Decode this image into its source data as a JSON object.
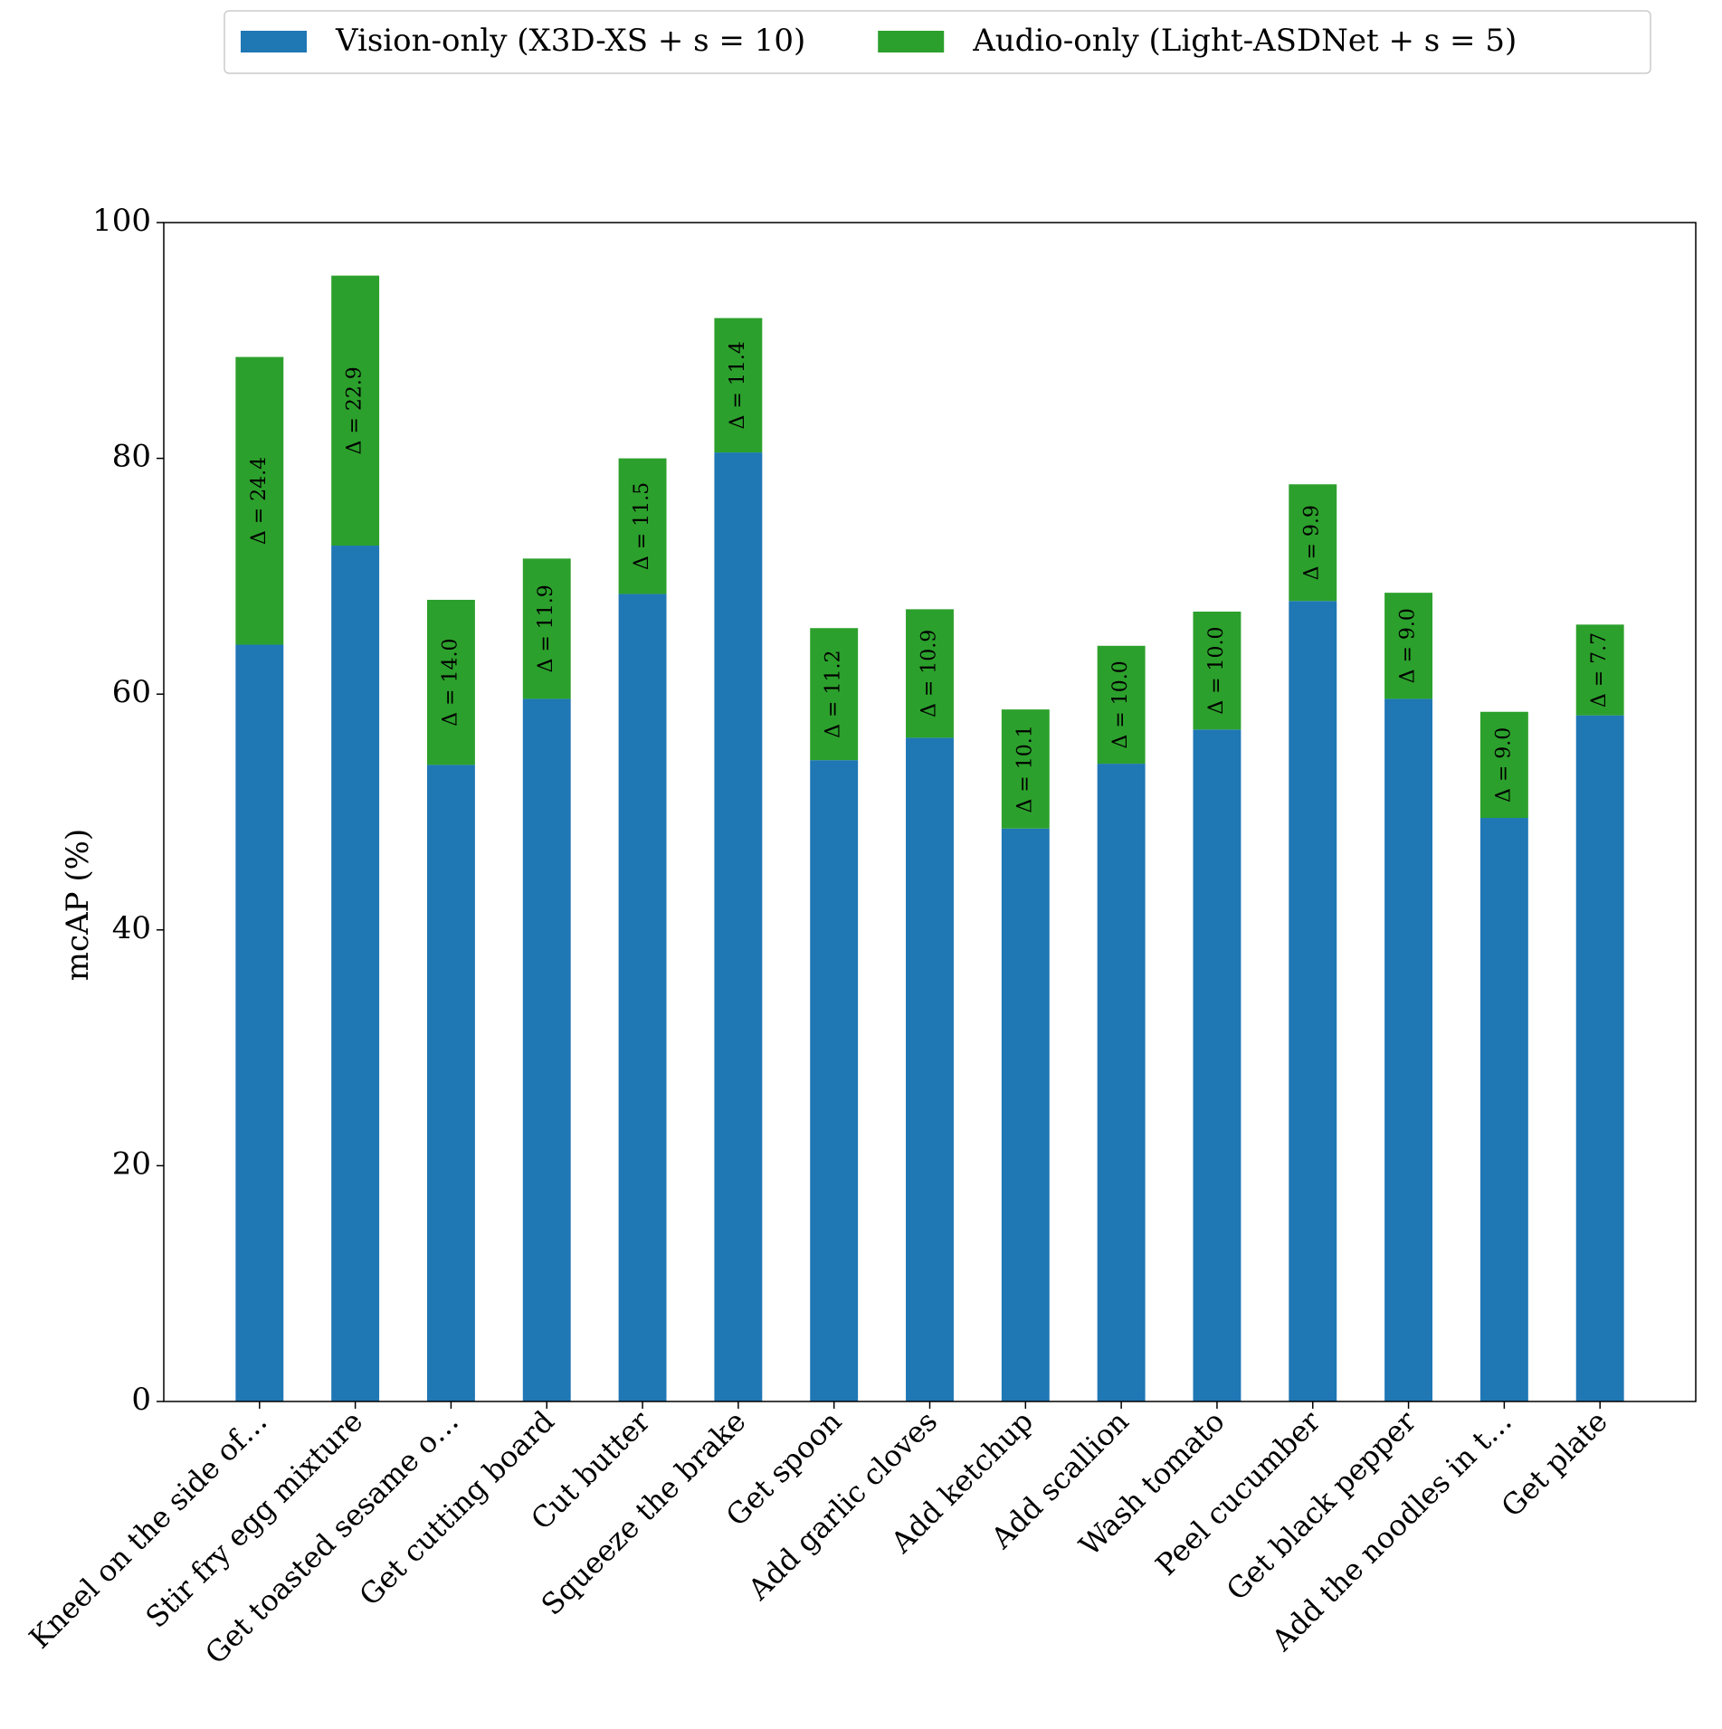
{
  "chart_data": {
    "type": "stacked_bar",
    "categories": [
      "Kneel on the side of…",
      "Stir fry egg mixture",
      "Get toasted sesame o…",
      "Get cutting board",
      "Cut butter",
      "Squeeze the brake",
      "Get spoon",
      "Add garlic cloves",
      "Add ketchup",
      "Add scallion",
      "Wash tomato",
      "Peel cucumber",
      "Get black pepper",
      "Add the noodles in t…",
      "Get plate"
    ],
    "series": [
      {
        "name": "Vision-only (X3D-XS + s = 10)",
        "color": "#1f77b4",
        "values": [
          64.2,
          72.6,
          54.0,
          59.6,
          68.5,
          80.5,
          54.4,
          56.3,
          48.6,
          54.1,
          57.0,
          67.9,
          59.6,
          49.5,
          58.2
        ]
      },
      {
        "name": "Audio-only (Light-ASDNet + s = 5)",
        "color": "#2ca02c",
        "values": [
          24.4,
          22.9,
          14.0,
          11.9,
          11.5,
          11.4,
          11.2,
          10.9,
          10.1,
          10.0,
          10.0,
          9.9,
          9.0,
          9.0,
          7.7
        ],
        "value_labels": [
          "Δ = 24.4",
          "Δ = 22.9",
          "Δ = 14.0",
          "Δ = 11.9",
          "Δ = 11.5",
          "Δ = 11.4",
          "Δ = 11.2",
          "Δ = 10.9",
          "Δ = 10.1",
          "Δ = 10.0",
          "Δ = 10.0",
          "Δ = 9.9",
          "Δ = 9.0",
          "Δ = 9.0",
          "Δ = 7.7"
        ]
      }
    ],
    "ylabel": "mcAP (%)",
    "ylim": [
      0,
      100
    ],
    "yticks": [
      0,
      20,
      40,
      60,
      80,
      100
    ],
    "legend": "top"
  }
}
